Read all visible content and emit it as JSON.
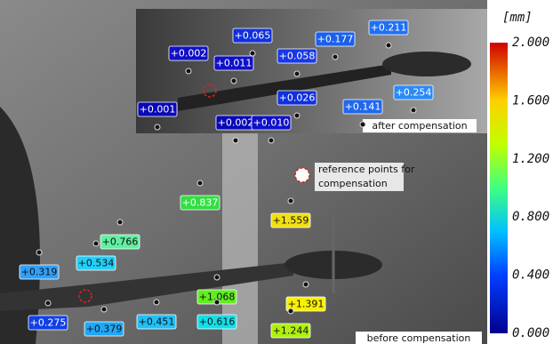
{
  "unit": "[mm]",
  "colorbar": {
    "ticks": [
      "2.000",
      "1.600",
      "1.200",
      "0.800",
      "0.400",
      "0.000"
    ]
  },
  "legend": {
    "lines": [
      "reference points for",
      "compensation"
    ]
  },
  "top_panel": {
    "caption": "after compensation",
    "labels": [
      "+0.002",
      "+0.065",
      "+0.011",
      "+0.058",
      "+0.177",
      "+0.211",
      "+0.001",
      "+0.026",
      "+0.254",
      "+0.141",
      "+0.002",
      "+0.010"
    ]
  },
  "bottom_panel": {
    "caption": "before compensation",
    "labels": [
      "+0.837",
      "+1.559",
      "+0.766",
      "+0.534",
      "+0.319",
      "+1.068",
      "+1.391",
      "+0.451",
      "+0.616",
      "+1.244",
      "+0.275",
      "+0.379"
    ]
  }
}
